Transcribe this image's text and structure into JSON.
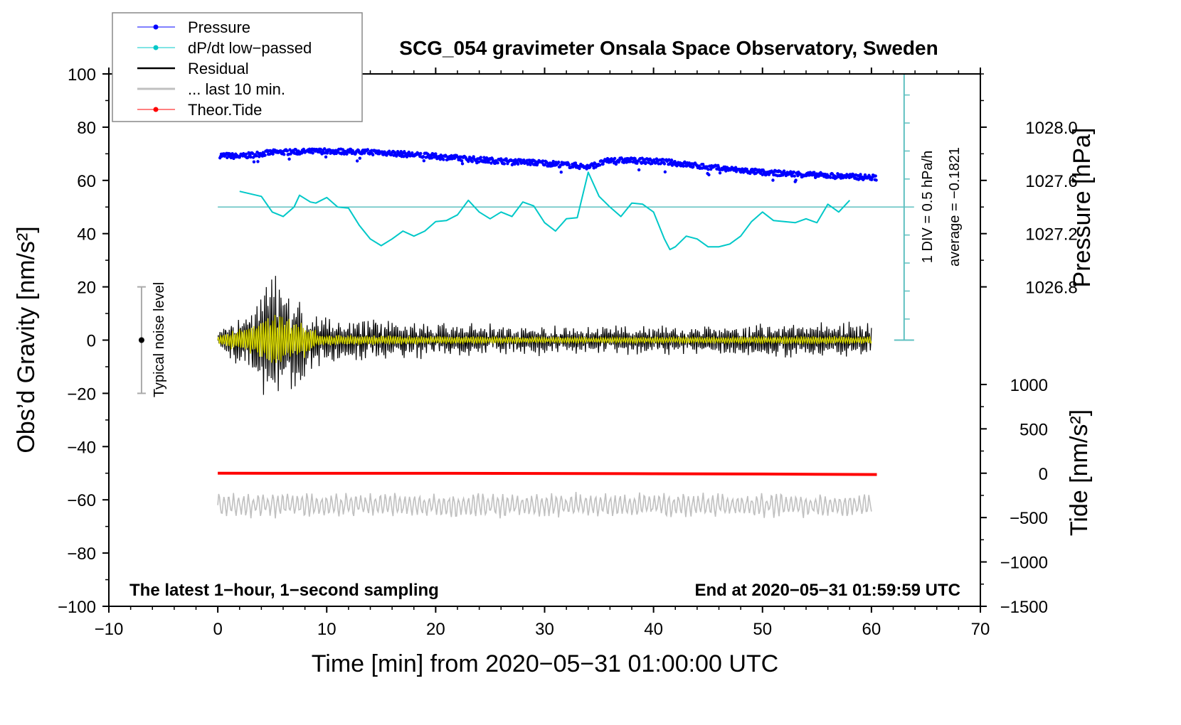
{
  "chart_data": {
    "type": "line",
    "title": "SCG_054 gravimeter Onsala Space Observatory, Sweden",
    "xlabel": "Time [min] from 2020−05−31 01:00:00 UTC",
    "ylabel": "Obs’d Gravity [nm/s²]",
    "ylabel_right_top": "Pressure [hPa]",
    "ylabel_right_bottom": "Tide [nm/s²]",
    "xlim": [
      -10,
      70
    ],
    "ylim": [
      -100,
      100
    ],
    "x_ticks": [
      "−10",
      "0",
      "10",
      "20",
      "30",
      "40",
      "50",
      "60",
      "70"
    ],
    "x_tick_values": [
      -10,
      0,
      10,
      20,
      30,
      40,
      50,
      60,
      70
    ],
    "y_ticks": [
      "100",
      "80",
      "60",
      "40",
      "20",
      "0",
      "−20",
      "−40",
      "−60",
      "−80",
      "−100"
    ],
    "y_tick_values": [
      100,
      80,
      60,
      40,
      20,
      0,
      -20,
      -40,
      -60,
      -80,
      -100
    ],
    "pressure_ticks": [
      "1028.0",
      "1027.6",
      "1027.2",
      "1026.8"
    ],
    "pressure_tick_values": [
      1028.0,
      1027.6,
      1027.2,
      1026.8
    ],
    "tide_ticks": [
      "1000",
      "500",
      "0",
      "−500",
      "−1000",
      "−1500"
    ],
    "tide_tick_values": [
      1000,
      500,
      0,
      -500,
      -1000,
      -1500
    ],
    "legend": {
      "placement": "top-left",
      "entries": [
        "Pressure",
        "dP/dt low−passed",
        "Residual",
        "... last 10 min.",
        "Theor.Tide"
      ]
    },
    "annotations": {
      "bottom_left": "The latest 1−hour, 1−second sampling",
      "bottom_right": "End at 2020−05−31 01:59:59 UTC",
      "div_label": "1 DIV = 0.5 hPa/h",
      "average_label": "average = −0.1821",
      "noise_label": "Typical noise level"
    },
    "colors": {
      "pressure": "#0000ff",
      "dpdt": "#00c8c8",
      "dpdt_axis": "#5fc0c0",
      "residual": "#000000",
      "filtered": "#d4d400",
      "last10": "#c0c0c0",
      "tide": "#ff0000"
    },
    "series": [
      {
        "name": "Pressure",
        "unit": "hPa",
        "x": [
          0,
          2,
          5,
          10,
          15,
          20,
          25,
          30,
          33,
          34,
          36,
          38,
          41,
          45,
          50,
          55,
          60.5
        ],
        "values": [
          1027.79,
          1027.78,
          1027.81,
          1027.82,
          1027.81,
          1027.78,
          1027.75,
          1027.73,
          1027.71,
          1027.7,
          1027.75,
          1027.75,
          1027.74,
          1027.7,
          1027.66,
          1027.64,
          1027.62
        ]
      },
      {
        "name": "dP/dt low−passed",
        "unit": "hPa/h",
        "baseline_gravity": 50,
        "div_hPa_per_h": 0.5,
        "x": [
          2,
          4,
          5,
          6,
          7,
          7.5,
          8.5,
          9,
          10,
          11,
          12,
          13,
          14,
          15,
          16,
          17,
          18,
          19,
          20,
          21,
          22,
          23,
          24,
          25,
          26,
          27,
          28,
          29,
          30,
          31,
          32,
          33,
          34,
          35,
          36,
          37,
          38,
          39,
          40,
          41,
          41.5,
          42,
          43,
          44,
          45,
          46,
          47,
          48,
          49,
          50,
          51,
          52,
          53,
          54,
          55,
          56,
          57,
          58
        ],
        "values": [
          0.28,
          0.19,
          -0.09,
          -0.17,
          0,
          0.21,
          0.09,
          0.07,
          0.17,
          0,
          -0.02,
          -0.33,
          -0.57,
          -0.69,
          -0.57,
          -0.43,
          -0.52,
          -0.43,
          -0.26,
          -0.24,
          -0.14,
          0.12,
          -0.09,
          -0.21,
          -0.09,
          -0.17,
          0.09,
          0.02,
          -0.28,
          -0.43,
          -0.21,
          -0.19,
          0.62,
          0.19,
          0,
          -0.17,
          0.07,
          0.05,
          -0.09,
          -0.57,
          -0.76,
          -0.71,
          -0.52,
          -0.57,
          -0.71,
          -0.71,
          -0.66,
          -0.52,
          -0.26,
          -0.09,
          -0.24,
          -0.26,
          -0.28,
          -0.21,
          -0.28,
          0.05,
          -0.09,
          0.12
        ]
      },
      {
        "name": "Residual",
        "unit": "nm/s²",
        "envelope_x": [
          0,
          2,
          3,
          4,
          5,
          6,
          7,
          8,
          9,
          10,
          13,
          20,
          30,
          40,
          50,
          60
        ],
        "envelope_amplitude": [
          4,
          10,
          14,
          18,
          24,
          20,
          18,
          16,
          10,
          8,
          8,
          6,
          5,
          5,
          6,
          6
        ]
      },
      {
        "name": "... last 10 min.",
        "unit": "nm/s²",
        "offset": -62,
        "amplitude": 5,
        "x_range": [
          0,
          60
        ]
      },
      {
        "name": "Theor.Tide",
        "unit": "nm/s²",
        "x": [
          0,
          20,
          30,
          40,
          50,
          60.5
        ],
        "values": [
          0,
          -1,
          -3,
          -6,
          -9,
          -15
        ]
      }
    ]
  }
}
